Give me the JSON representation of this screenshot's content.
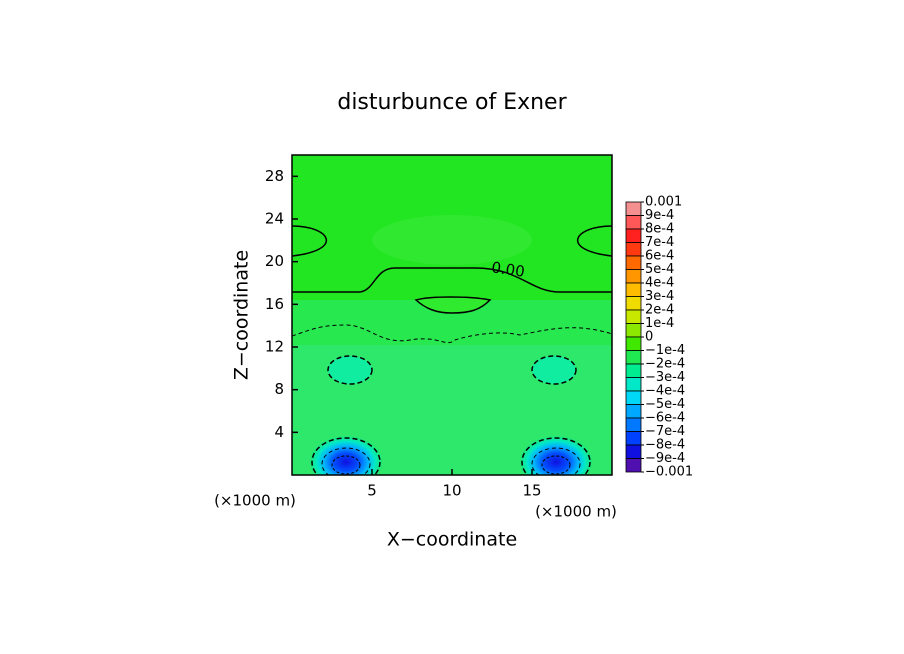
{
  "chart_data": {
    "type": "contour",
    "title": "disturbunce of Exner",
    "x_label": "X−coordinate",
    "y_label": "Z−coordinate",
    "x_unit_labels": [
      "(×1000 m)",
      "(×1000 m)"
    ],
    "xlim": [
      0,
      20
    ],
    "ylim": [
      0,
      30
    ],
    "xticks": [
      5,
      10,
      15
    ],
    "yticks": [
      4,
      8,
      12,
      16,
      20,
      24,
      28
    ],
    "contour_label": {
      "value": 0,
      "label": "0.00"
    },
    "colorbar": {
      "ticks": [
        0.001,
        {
          "value": 0.0009,
          "label": "9e-4"
        },
        {
          "value": 0.0008,
          "label": "8e-4"
        },
        {
          "value": 0.0007,
          "label": "7e-4"
        },
        {
          "value": 0.0006,
          "label": "6e-4"
        },
        {
          "value": 0.0005,
          "label": "5e-4"
        },
        {
          "value": 0.0004,
          "label": "4e-4"
        },
        {
          "value": 0.0003,
          "label": "3e-4"
        },
        {
          "value": 0.0002,
          "label": "2e-4"
        },
        {
          "value": 0.0001,
          "label": "1e-4"
        },
        0,
        {
          "value": -0.0001,
          "label": "−1e-4"
        },
        {
          "value": -0.0002,
          "label": "−2e-4"
        },
        {
          "value": -0.0003,
          "label": "−3e-4"
        },
        {
          "value": -0.0004,
          "label": "−4e-4"
        },
        {
          "value": -0.0005,
          "label": "−5e-4"
        },
        {
          "value": -0.0006,
          "label": "−6e-4"
        },
        {
          "value": -0.0007,
          "label": "−7e-4"
        },
        {
          "value": -0.0008,
          "label": "−8e-4"
        },
        {
          "value": -0.0009,
          "label": "−9e-4"
        },
        {
          "value": -0.001,
          "label": "−0.001"
        }
      ],
      "colors": [
        "#f49090",
        "#ff5858",
        "#ff2020",
        "#ff3a10",
        "#ff6a00",
        "#ff9600",
        "#ffbc00",
        "#f0dc00",
        "#c8e800",
        "#8ce800",
        "#40e800",
        "#20e850",
        "#00ec90",
        "#00e8c8",
        "#00d8f8",
        "#00a8ff",
        "#0078ff",
        "#0040ff",
        "#1010e0",
        "#5010b0"
      ]
    }
  }
}
